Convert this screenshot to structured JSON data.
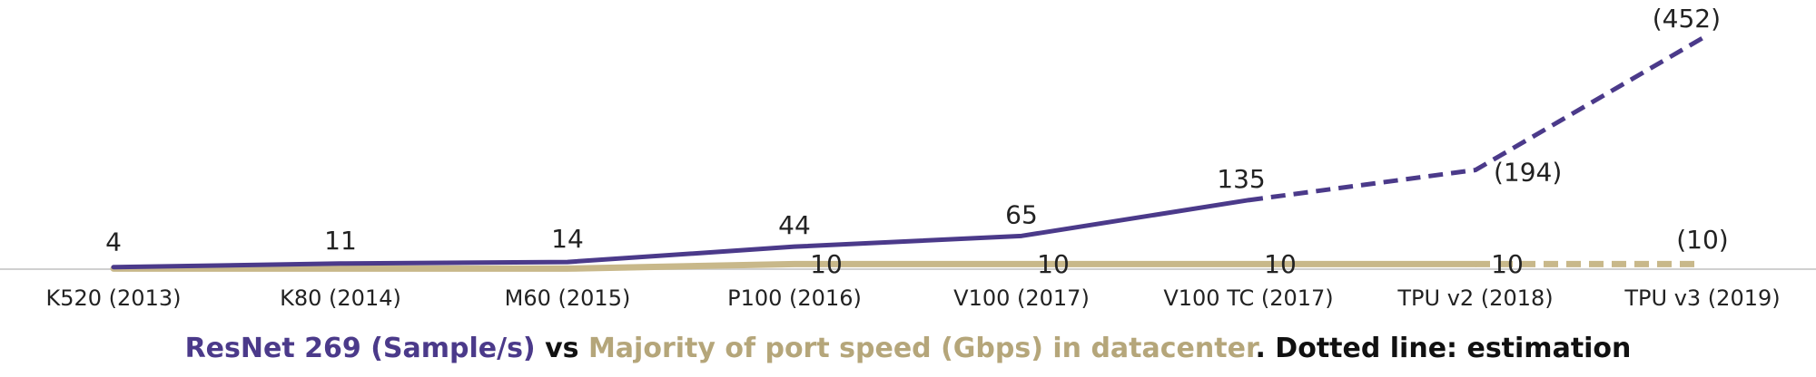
{
  "chart_data": {
    "type": "line",
    "categories": [
      "K520 (2013)",
      "K80 (2014)",
      "M60 (2015)",
      "P100 (2016)",
      "V100 (2017)",
      "V100 TC (2017)",
      "TPU v2 (2018)",
      "TPU v3 (2019)"
    ],
    "series": [
      {
        "name": "ResNet 269 (Sample/s)",
        "color": "#4b3a8a",
        "values": [
          4,
          11,
          14,
          44,
          65,
          135,
          194,
          452
        ],
        "labels": [
          "4",
          "11",
          "14",
          "44",
          "65",
          "135",
          "(194)",
          "(452)"
        ],
        "estimated_from_index": 5
      },
      {
        "name": "Majority of port speed (Gbps) in datacenter",
        "color": "#c8b88a",
        "values": [
          1,
          1,
          1,
          10,
          10,
          10,
          10,
          10
        ],
        "labels": [
          "",
          "",
          "",
          "10",
          "10",
          "10",
          "10",
          "(10)"
        ],
        "estimated_from_index": 6
      }
    ],
    "ylim": [
      0,
      452
    ],
    "grid": false,
    "legend": "none"
  },
  "caption": {
    "series1": "ResNet 269 (Sample/s)",
    "vs": " vs ",
    "series2": "Majority of port speed (Gbps) in datacenter",
    "tail": ". Dotted line: estimation",
    "color1": "#4b3a8a",
    "color2": "#b5a67a",
    "color_text": "#111111"
  }
}
